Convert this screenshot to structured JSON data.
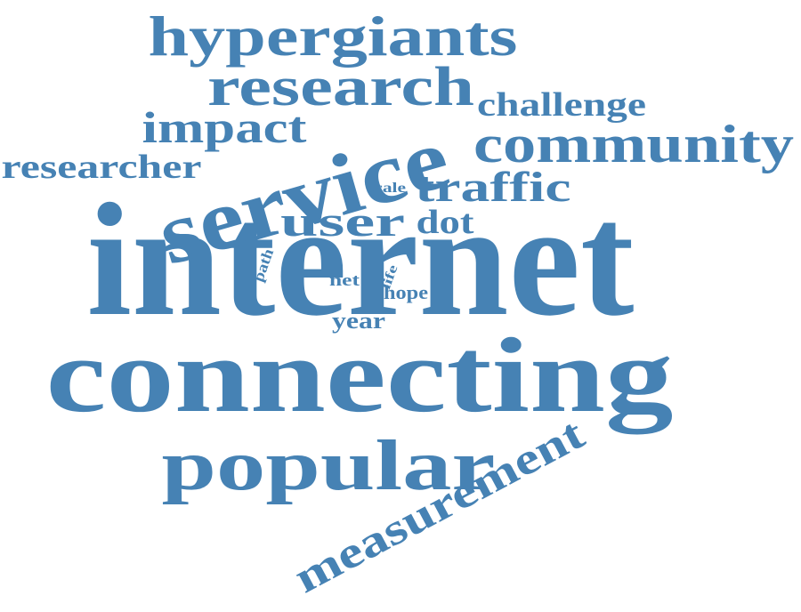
{
  "word_cloud": {
    "color": "#4682b4",
    "words": [
      {
        "text": "internet",
        "weight": 1.0
      },
      {
        "text": "connecting",
        "weight": 0.78
      },
      {
        "text": "service",
        "weight": 0.58
      },
      {
        "text": "popular",
        "weight": 0.48
      },
      {
        "text": "hypergiants",
        "weight": 0.4
      },
      {
        "text": "research",
        "weight": 0.38
      },
      {
        "text": "community",
        "weight": 0.36
      },
      {
        "text": "measurement",
        "weight": 0.34
      },
      {
        "text": "impact",
        "weight": 0.3
      },
      {
        "text": "user",
        "weight": 0.3
      },
      {
        "text": "traffic",
        "weight": 0.29
      },
      {
        "text": "researcher",
        "weight": 0.24
      },
      {
        "text": "challenge",
        "weight": 0.23
      },
      {
        "text": "dot",
        "weight": 0.22
      },
      {
        "text": "year",
        "weight": 0.14
      },
      {
        "text": "hope",
        "weight": 0.12
      },
      {
        "text": "net",
        "weight": 0.11
      },
      {
        "text": "scale",
        "weight": 0.1
      },
      {
        "text": "path",
        "weight": 0.1
      },
      {
        "text": "life",
        "weight": 0.09
      }
    ]
  }
}
